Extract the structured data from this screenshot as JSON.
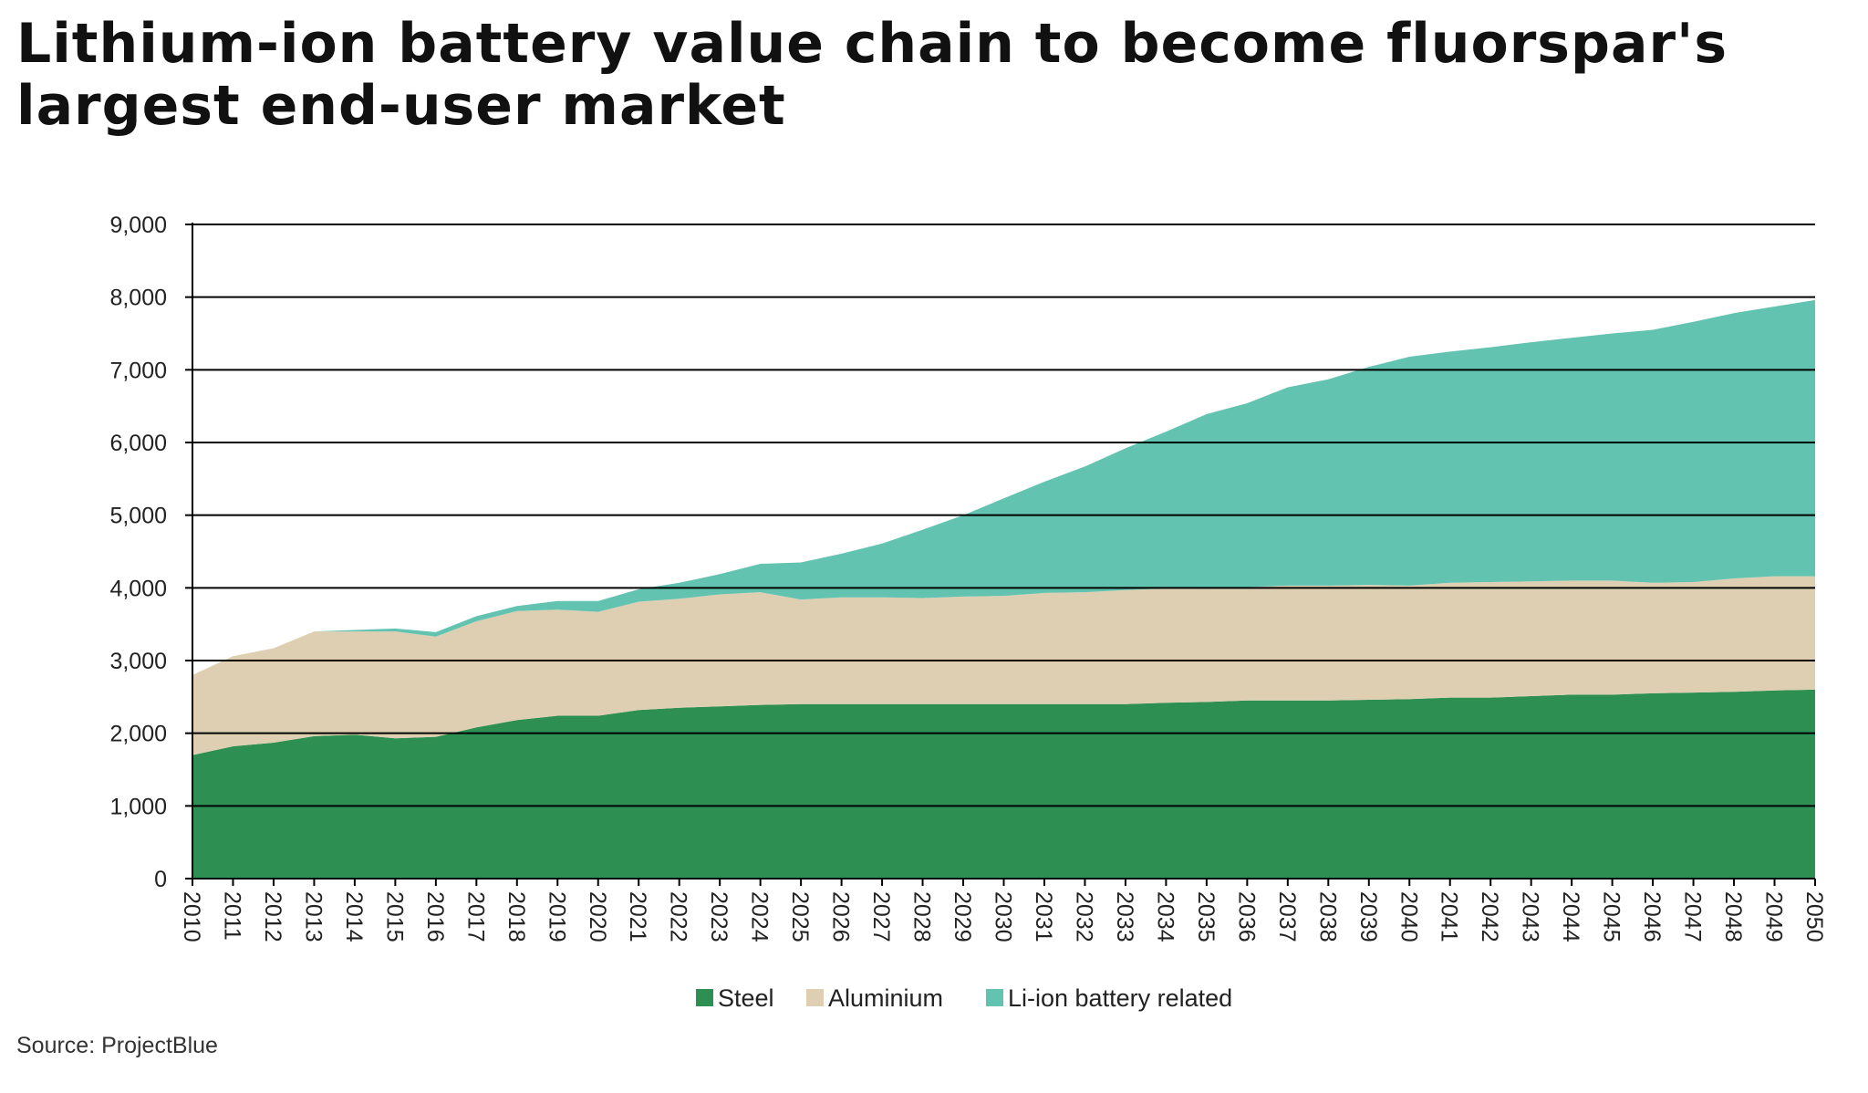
{
  "title": "Lithium-ion battery value chain to become fluorspar's largest end-user market",
  "source": "Source: ProjectBlue",
  "colors": {
    "steel": "#2d8f52",
    "aluminium": "#dfcfb2",
    "li_ion": "#62c3b1",
    "grid": "#000000"
  },
  "chart_data": {
    "type": "area",
    "stacked": true,
    "title": "Lithium-ion battery value chain to become fluorspar's largest end-user market",
    "xlabel": "",
    "ylabel": "",
    "ylim": [
      0,
      9000
    ],
    "y_ticks": [
      "0",
      "1,000",
      "2,000",
      "3,000",
      "4,000",
      "5,000",
      "6,000",
      "7,000",
      "8,000",
      "9,000"
    ],
    "grid": "horizontal",
    "legend_position": "bottom",
    "x": [
      "2010",
      "2011",
      "2012",
      "2013",
      "2014",
      "2015",
      "2016",
      "2017",
      "2018",
      "2019",
      "2020",
      "2021",
      "2022",
      "2023",
      "2024",
      "2025",
      "2026",
      "2027",
      "2028",
      "2029",
      "2030",
      "2031",
      "2032",
      "2033",
      "2034",
      "2035",
      "2036",
      "2037",
      "2038",
      "2039",
      "2040",
      "2041",
      "2042",
      "2043",
      "2044",
      "2045",
      "2046",
      "2047",
      "2048",
      "2049",
      "2050"
    ],
    "series": [
      {
        "name": "Steel",
        "values": [
          1700,
          1820,
          1870,
          1960,
          1980,
          1930,
          1950,
          2080,
          2180,
          2240,
          2240,
          2320,
          2350,
          2370,
          2390,
          2400,
          2400,
          2400,
          2400,
          2400,
          2400,
          2400,
          2400,
          2400,
          2420,
          2430,
          2450,
          2450,
          2450,
          2460,
          2470,
          2490,
          2490,
          2510,
          2530,
          2530,
          2550,
          2560,
          2570,
          2590,
          2600
        ]
      },
      {
        "name": "Aluminium",
        "values": [
          1100,
          1240,
          1300,
          1440,
          1420,
          1470,
          1380,
          1460,
          1500,
          1460,
          1430,
          1490,
          1500,
          1540,
          1550,
          1440,
          1470,
          1470,
          1460,
          1480,
          1490,
          1530,
          1540,
          1570,
          1570,
          1560,
          1560,
          1580,
          1580,
          1580,
          1560,
          1580,
          1590,
          1580,
          1570,
          1570,
          1520,
          1520,
          1560,
          1570,
          1560
        ]
      },
      {
        "name": "Li-ion battery related",
        "values": [
          0,
          0,
          0,
          0,
          20,
          40,
          60,
          70,
          70,
          120,
          150,
          170,
          220,
          280,
          390,
          510,
          600,
          740,
          940,
          1120,
          1340,
          1530,
          1730,
          1950,
          2160,
          2400,
          2530,
          2730,
          2840,
          3000,
          3150,
          3180,
          3230,
          3290,
          3340,
          3400,
          3480,
          3580,
          3650,
          3710,
          3800
        ]
      }
    ]
  }
}
